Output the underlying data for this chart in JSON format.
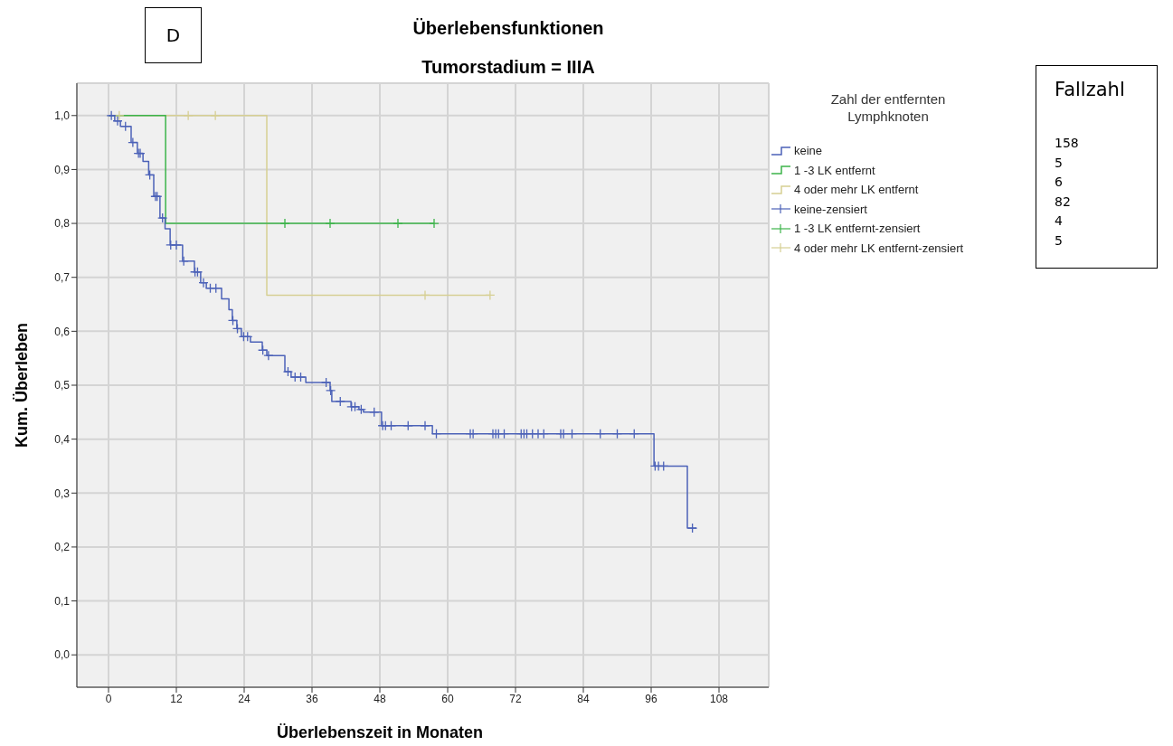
{
  "chart_data": {
    "type": "step",
    "title": "Überlebensfunktionen",
    "subtitle": "Tumorstadium = IIIA",
    "xlabel": "Überlebenszeit in Monaten",
    "ylabel": "Kum. Überleben",
    "legend_title": "Zahl der entfernten Lymphknoten",
    "legend": "right",
    "grid": true,
    "xlim": [
      -5.6,
      116.8
    ],
    "ylim": [
      -0.06,
      1.06
    ],
    "xticks": [
      0,
      12,
      24,
      36,
      48,
      60,
      72,
      84,
      96,
      108
    ],
    "yticks": [
      {
        "value": 0,
        "label": "0,0"
      },
      {
        "value": 0.1,
        "label": "0,1"
      },
      {
        "value": 0.2,
        "label": "0,2"
      },
      {
        "value": 0.3,
        "label": "0,3"
      },
      {
        "value": 0.4,
        "label": "0,4"
      },
      {
        "value": 0.5,
        "label": "0,5"
      },
      {
        "value": 0.6,
        "label": "0,6"
      },
      {
        "value": 0.7,
        "label": "0,7"
      },
      {
        "value": 0.8,
        "label": "0,8"
      },
      {
        "value": 0.9,
        "label": "0,9"
      },
      {
        "value": 1,
        "label": "1,0"
      }
    ],
    "series": [
      {
        "name": "keine",
        "marker": "none",
        "color": "#4c62b8",
        "x": [
          0,
          1.1,
          2.1,
          4,
          5.1,
          6.1,
          7.1,
          8,
          9.1,
          10,
          10.9,
          13.1,
          15.2,
          16.3,
          17.3,
          20,
          21.3,
          21.9,
          22.7,
          23.5,
          25.1,
          27.2,
          28,
          31.2,
          32.3,
          34.9,
          39.2,
          39.5,
          42.9,
          44.3,
          45.1,
          48.3,
          57.3,
          96.5,
          102.4,
          104
        ],
        "values": [
          1,
          0.99,
          0.98,
          0.95,
          0.93,
          0.915,
          0.89,
          0.85,
          0.81,
          0.79,
          0.76,
          0.73,
          0.71,
          0.69,
          0.68,
          0.66,
          0.64,
          0.62,
          0.605,
          0.59,
          0.58,
          0.565,
          0.555,
          0.525,
          0.515,
          0.505,
          0.49,
          0.47,
          0.46,
          0.455,
          0.45,
          0.425,
          0.41,
          0.35,
          0.235,
          0.235
        ]
      },
      {
        "name": "1 -3 LK entfernt",
        "marker": "none",
        "color": "#3cb44a",
        "x": [
          0,
          10.1,
          57.6
        ],
        "values": [
          1,
          0.8,
          0.8
        ]
      },
      {
        "name": "4 oder mehr LK entfernt",
        "marker": "none",
        "color": "#d6cf93",
        "x": [
          0,
          28,
          67.5
        ],
        "values": [
          1,
          0.667,
          0.667
        ]
      },
      {
        "name": "keine-zensiert",
        "type": "scatter",
        "marker": "cross",
        "color": "#4c62b8",
        "x": [
          0.5,
          1.6,
          3,
          4.3,
          5.3,
          5.6,
          7.3,
          8.3,
          8.6,
          9.55,
          11,
          12,
          13.3,
          15.3,
          15.75,
          16.8,
          18,
          19,
          22,
          22.8,
          23.9,
          24.6,
          27.3,
          28.3,
          31.75,
          33,
          34,
          38.5,
          39.3,
          41,
          43,
          43.6,
          44.7,
          47,
          48.5,
          49,
          50,
          53,
          56,
          58,
          64,
          64.5,
          68,
          68.5,
          69,
          70,
          73,
          73.5,
          74,
          75,
          76,
          77,
          80,
          80.5,
          82,
          87,
          90,
          93,
          96.7,
          97.3,
          98.2,
          103.3
        ],
        "values": [
          1,
          0.99,
          0.98,
          0.95,
          0.93,
          0.93,
          0.89,
          0.85,
          0.85,
          0.81,
          0.76,
          0.76,
          0.73,
          0.71,
          0.71,
          0.69,
          0.68,
          0.68,
          0.62,
          0.605,
          0.59,
          0.59,
          0.565,
          0.555,
          0.525,
          0.515,
          0.515,
          0.505,
          0.49,
          0.47,
          0.46,
          0.46,
          0.455,
          0.45,
          0.425,
          0.425,
          0.425,
          0.425,
          0.425,
          0.41,
          0.41,
          0.41,
          0.41,
          0.41,
          0.41,
          0.41,
          0.41,
          0.41,
          0.41,
          0.41,
          0.41,
          0.41,
          0.41,
          0.41,
          0.41,
          0.41,
          0.41,
          0.41,
          0.35,
          0.35,
          0.35,
          0.235
        ]
      },
      {
        "name": "1 -3 LK entfernt-zensiert",
        "type": "scatter",
        "marker": "cross",
        "color": "#3cb44a",
        "x": [
          31.2,
          39.2,
          51.2,
          57.6
        ],
        "values": [
          0.8,
          0.8,
          0.8,
          0.8
        ]
      },
      {
        "name": "4 oder mehr LK entfernt-zensiert",
        "type": "scatter",
        "marker": "cross",
        "color": "#d6cf93",
        "x": [
          1.9,
          14.1,
          18.9,
          56,
          67.5
        ],
        "values": [
          1,
          1,
          1,
          0.667,
          0.667
        ]
      }
    ],
    "annotations": [
      "D",
      "Fallzahl",
      "158",
      "5",
      "6",
      "82",
      "4",
      "5"
    ]
  }
}
